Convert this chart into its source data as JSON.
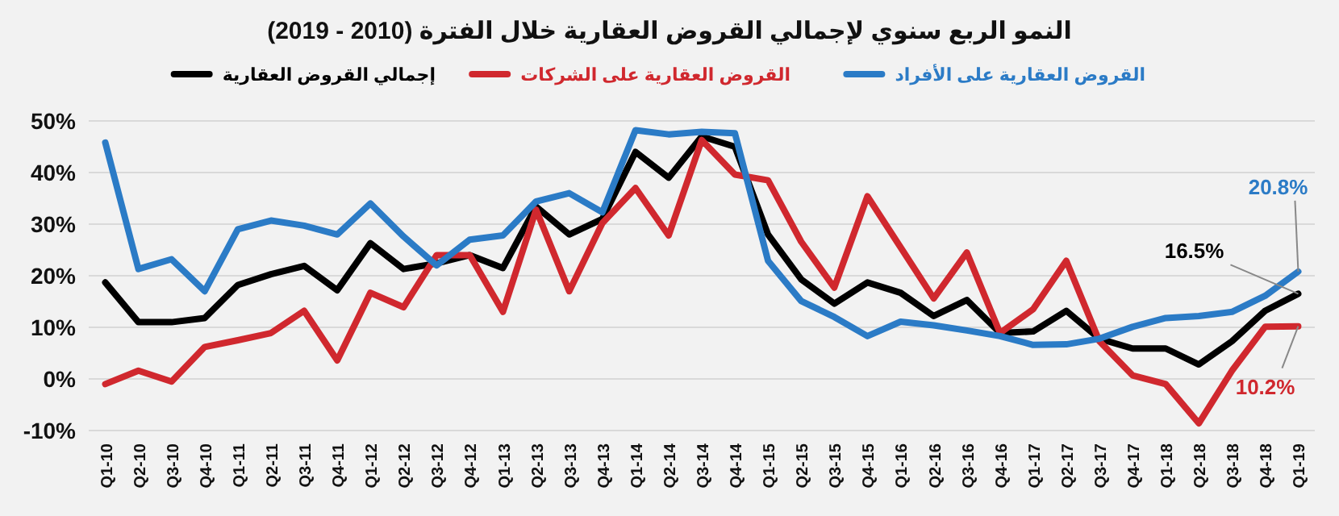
{
  "chart_data": {
    "type": "line",
    "title": "النمو الربع سنوي لإجمالي القروض العقارية خلال الفترة (2010 - 2019)",
    "categories": [
      "Q1-10",
      "Q2-10",
      "Q3-10",
      "Q4-10",
      "Q1-11",
      "Q2-11",
      "Q3-11",
      "Q4-11",
      "Q1-12",
      "Q2-12",
      "Q3-12",
      "Q4-12",
      "Q1-13",
      "Q2-13",
      "Q3-13",
      "Q4-13",
      "Q1-14",
      "Q2-14",
      "Q3-14",
      "Q4-14",
      "Q1-15",
      "Q2-15",
      "Q3-15",
      "Q4-15",
      "Q1-16",
      "Q2-16",
      "Q3-16",
      "Q4-16",
      "Q1-17",
      "Q2-17",
      "Q3-17",
      "Q4-17",
      "Q1-18",
      "Q2-18",
      "Q3-18",
      "Q4-18",
      "Q1-19"
    ],
    "series": [
      {
        "name": "إجمالي القروض العقارية",
        "color": "#000000",
        "values": [
          18.7,
          11,
          11,
          11.8,
          18.2,
          20.3,
          21.9,
          17.2,
          26.3,
          21.3,
          22.4,
          24,
          21.5,
          33.4,
          28,
          31,
          44,
          39,
          47,
          45,
          28,
          19.3,
          14.6,
          18.7,
          16.7,
          12.2,
          15.3,
          8.9,
          9.2,
          13.2,
          7.8,
          5.9,
          5.9,
          2.8,
          7.3,
          13.2,
          16.5
        ],
        "value_labels": [
          null,
          null,
          null,
          null,
          null,
          null,
          null,
          null,
          null,
          null,
          null,
          null,
          null,
          null,
          null,
          null,
          null,
          null,
          null,
          null,
          null,
          null,
          null,
          null,
          null,
          null,
          null,
          null,
          null,
          null,
          null,
          null,
          null,
          null,
          null,
          null,
          "16.5%"
        ]
      },
      {
        "name": "القروض العقارية على الشركات",
        "color": "#d0282e",
        "values": [
          -1,
          1.6,
          -0.5,
          6.2,
          7.5,
          8.9,
          13.2,
          3.6,
          16.7,
          13.9,
          24,
          24,
          13,
          32.8,
          17,
          30.2,
          37,
          27.8,
          46.3,
          39.6,
          38.5,
          26.6,
          17.7,
          35.4,
          25.5,
          15.6,
          24.5,
          8.9,
          13.5,
          22.9,
          7.3,
          0.7,
          -1,
          -8.6,
          1.6,
          10.1,
          10.2
        ],
        "value_labels": [
          null,
          null,
          null,
          null,
          null,
          null,
          null,
          null,
          null,
          null,
          null,
          null,
          null,
          null,
          null,
          null,
          null,
          null,
          null,
          null,
          null,
          null,
          null,
          null,
          null,
          null,
          null,
          null,
          null,
          null,
          null,
          null,
          null,
          null,
          null,
          null,
          "10.2%"
        ]
      },
      {
        "name": "القروض العقارية على الأفراد",
        "color": "#2b7bc6",
        "values": [
          45.8,
          21.3,
          23.2,
          17,
          29,
          30.7,
          29.7,
          28,
          34,
          27.6,
          22,
          27,
          27.8,
          34.4,
          36,
          32.3,
          48.2,
          47.4,
          47.9,
          47.6,
          22.9,
          15.1,
          12,
          8.3,
          11.1,
          10.4,
          9.4,
          8.3,
          6.6,
          6.7,
          7.8,
          10.1,
          11.8,
          12.2,
          13,
          16.1,
          20.8
        ],
        "value_labels": [
          null,
          null,
          null,
          null,
          null,
          null,
          null,
          null,
          null,
          null,
          null,
          null,
          null,
          null,
          null,
          null,
          null,
          null,
          null,
          null,
          null,
          null,
          null,
          null,
          null,
          null,
          null,
          null,
          null,
          null,
          null,
          null,
          null,
          null,
          null,
          null,
          "20.8%"
        ]
      }
    ],
    "ylim": [
      -10,
      50
    ],
    "yticks": [
      {
        "value": -10,
        "label": "-10%"
      },
      {
        "value": 0,
        "label": "0%"
      },
      {
        "value": 10,
        "label": "10%"
      },
      {
        "value": 20,
        "label": "20%"
      },
      {
        "value": 30,
        "label": "30%"
      },
      {
        "value": 40,
        "label": "40%"
      },
      {
        "value": 50,
        "label": "50%"
      }
    ],
    "grid": "y",
    "legend": "top",
    "marker": "none",
    "line_style": "solid"
  }
}
